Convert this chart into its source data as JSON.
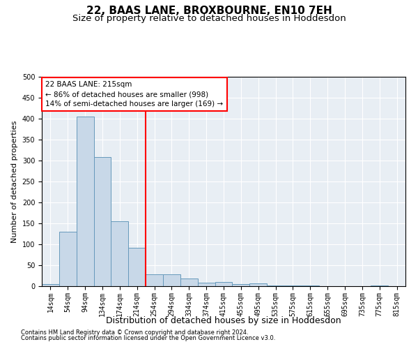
{
  "title": "22, BAAS LANE, BROXBOURNE, EN10 7EH",
  "subtitle": "Size of property relative to detached houses in Hoddesdon",
  "xlabel": "Distribution of detached houses by size in Hoddesdon",
  "ylabel": "Number of detached properties",
  "footnote1": "Contains HM Land Registry data © Crown copyright and database right 2024.",
  "footnote2": "Contains public sector information licensed under the Open Government Licence v3.0.",
  "bar_labels": [
    "14sqm",
    "54sqm",
    "94sqm",
    "134sqm",
    "174sqm",
    "214sqm",
    "254sqm",
    "294sqm",
    "334sqm",
    "374sqm",
    "415sqm",
    "455sqm",
    "495sqm",
    "535sqm",
    "575sqm",
    "615sqm",
    "655sqm",
    "695sqm",
    "735sqm",
    "775sqm",
    "815sqm"
  ],
  "bar_values": [
    5,
    130,
    405,
    308,
    155,
    92,
    29,
    29,
    18,
    8,
    10,
    5,
    6,
    1,
    1,
    1,
    0,
    0,
    0,
    1,
    0
  ],
  "bar_color": "#c8d8e8",
  "bar_edgecolor": "#6699bb",
  "bg_color": "#e8eef4",
  "annotation_text": "22 BAAS LANE: 215sqm\n← 86% of detached houses are smaller (998)\n14% of semi-detached houses are larger (169) →",
  "vline_x": 5.5,
  "ylim": [
    0,
    500
  ],
  "yticks": [
    0,
    50,
    100,
    150,
    200,
    250,
    300,
    350,
    400,
    450,
    500
  ],
  "title_fontsize": 11,
  "subtitle_fontsize": 9.5,
  "xlabel_fontsize": 9,
  "ylabel_fontsize": 8,
  "annot_fontsize": 7.5,
  "tick_fontsize": 7
}
